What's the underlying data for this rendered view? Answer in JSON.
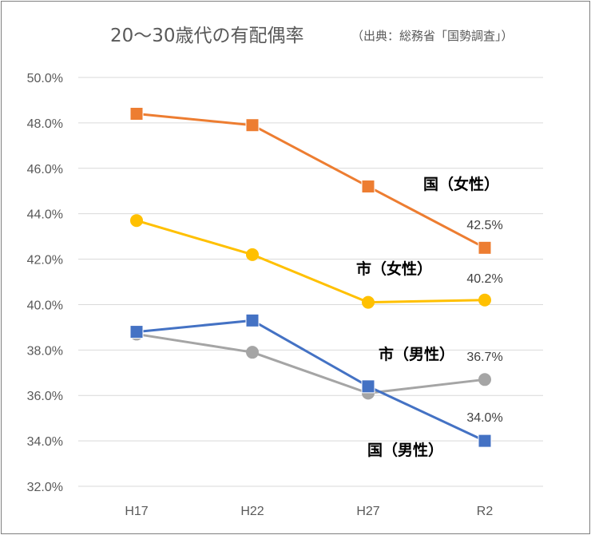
{
  "chart_data": {
    "type": "line",
    "title": "20〜30歳代の有配偶率",
    "source_note": "（出典：総務省「国勢調査」）",
    "categories": [
      "H17",
      "H22",
      "H27",
      "R2"
    ],
    "ylim": [
      32.0,
      50.0
    ],
    "ytick_step": 2.0,
    "yticks": [
      "32.0%",
      "34.0%",
      "36.0%",
      "38.0%",
      "40.0%",
      "42.0%",
      "44.0%",
      "46.0%",
      "48.0%",
      "50.0%"
    ],
    "grid": true,
    "series": [
      {
        "name": "国（女性）",
        "values": [
          48.4,
          47.9,
          45.2,
          42.5
        ],
        "color": "#ed7d31",
        "marker": "square",
        "end_label": "42.5%"
      },
      {
        "name": "市（女性）",
        "values": [
          43.7,
          42.2,
          40.1,
          40.2
        ],
        "color": "#ffc000",
        "marker": "circle",
        "end_label": "40.2%"
      },
      {
        "name": "市（男性）",
        "values": [
          38.7,
          37.9,
          36.1,
          36.7
        ],
        "color": "#a5a5a5",
        "marker": "circle",
        "end_label": "36.7%"
      },
      {
        "name": "国（男性）",
        "values": [
          38.8,
          39.3,
          36.4,
          34.0
        ],
        "color": "#4472c4",
        "marker": "square",
        "end_label": "34.0%"
      }
    ]
  }
}
